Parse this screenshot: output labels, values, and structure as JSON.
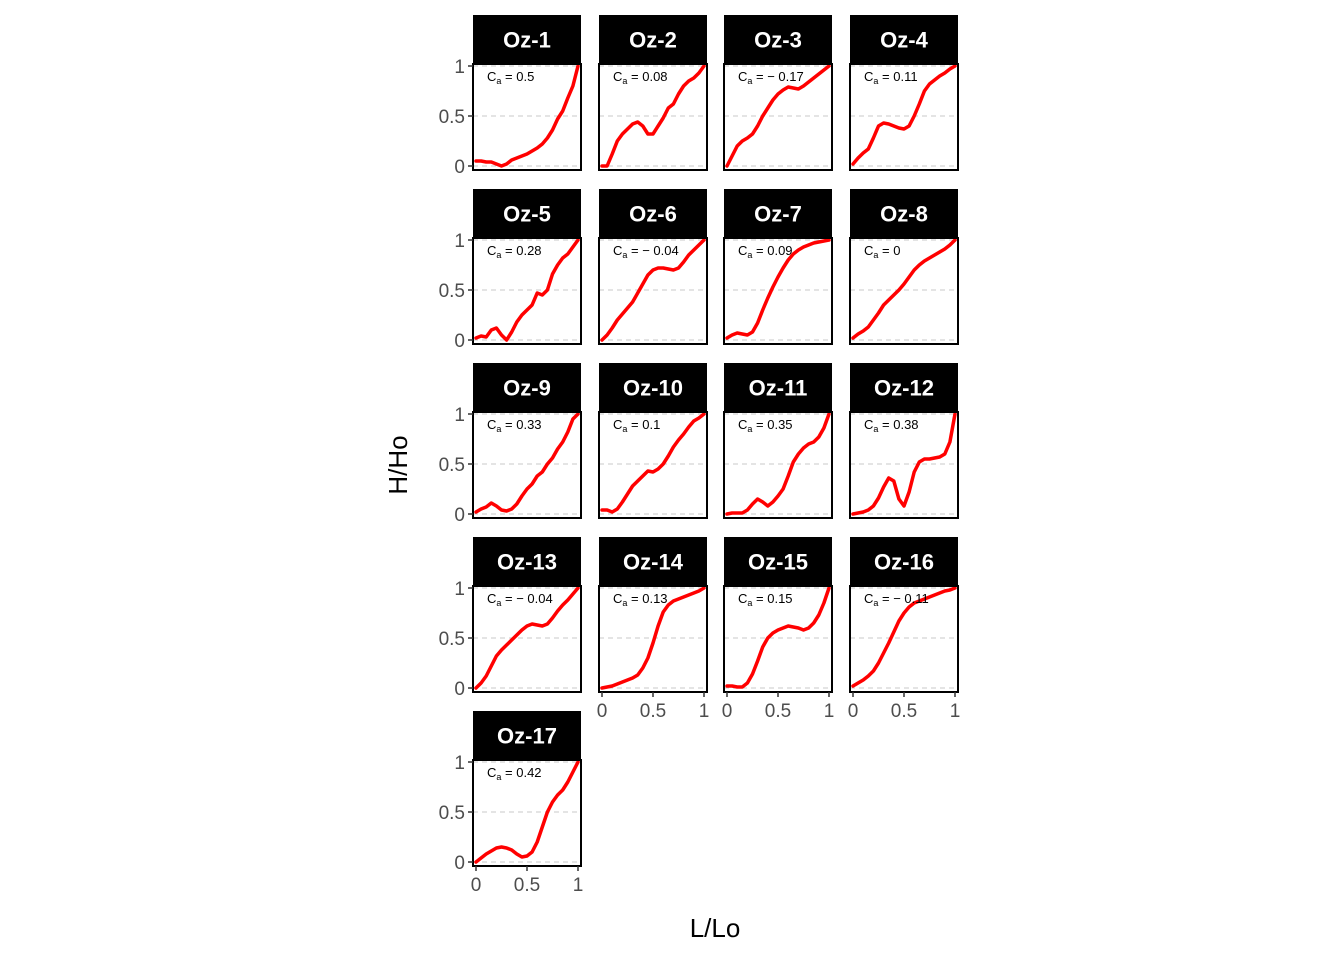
{
  "chart_data": {
    "type": "line",
    "xlabel": "L/Lo",
    "ylabel": "H/Ho",
    "xlim": [
      0,
      1
    ],
    "ylim": [
      0,
      1
    ],
    "x_ticks": [
      "0",
      "0.5",
      "1"
    ],
    "y_ticks": [
      "0",
      "0.5",
      "1"
    ],
    "grid": "dashed horizontal lines at 0, 0.5, 1",
    "line_color": "#ff0000",
    "strip_color": "#000000",
    "annotation_prefix": "C",
    "annotation_subscript": "a",
    "annotation_equals": " = ",
    "panels": [
      {
        "name": "Oz-1",
        "ca": "0.5",
        "x": [
          0,
          0.05,
          0.1,
          0.15,
          0.2,
          0.25,
          0.3,
          0.35,
          0.4,
          0.45,
          0.5,
          0.55,
          0.6,
          0.65,
          0.7,
          0.75,
          0.8,
          0.85,
          0.9,
          0.95,
          1
        ],
        "y": [
          0.05,
          0.05,
          0.04,
          0.04,
          0.02,
          0.0,
          0.02,
          0.06,
          0.08,
          0.1,
          0.12,
          0.15,
          0.18,
          0.22,
          0.28,
          0.36,
          0.47,
          0.55,
          0.68,
          0.8,
          1.0
        ]
      },
      {
        "name": "Oz-2",
        "ca": "0.08",
        "x": [
          0,
          0.05,
          0.1,
          0.15,
          0.2,
          0.25,
          0.3,
          0.35,
          0.4,
          0.45,
          0.5,
          0.55,
          0.6,
          0.65,
          0.7,
          0.75,
          0.8,
          0.85,
          0.9,
          0.95,
          1
        ],
        "y": [
          0.0,
          0.0,
          0.12,
          0.25,
          0.32,
          0.37,
          0.42,
          0.44,
          0.4,
          0.32,
          0.32,
          0.4,
          0.48,
          0.58,
          0.62,
          0.72,
          0.8,
          0.85,
          0.88,
          0.93,
          1.0
        ]
      },
      {
        "name": "Oz-3",
        "ca": "− 0.17",
        "x": [
          0,
          0.05,
          0.1,
          0.15,
          0.2,
          0.25,
          0.3,
          0.35,
          0.4,
          0.45,
          0.5,
          0.55,
          0.6,
          0.65,
          0.7,
          0.75,
          0.8,
          0.85,
          0.9,
          0.95,
          1
        ],
        "y": [
          0.0,
          0.1,
          0.2,
          0.25,
          0.28,
          0.32,
          0.4,
          0.5,
          0.58,
          0.66,
          0.72,
          0.76,
          0.79,
          0.78,
          0.77,
          0.8,
          0.84,
          0.88,
          0.92,
          0.96,
          1.0
        ]
      },
      {
        "name": "Oz-4",
        "ca": "0.11",
        "x": [
          0,
          0.05,
          0.1,
          0.15,
          0.2,
          0.25,
          0.3,
          0.35,
          0.4,
          0.45,
          0.5,
          0.55,
          0.6,
          0.65,
          0.7,
          0.75,
          0.8,
          0.85,
          0.9,
          0.95,
          1
        ],
        "y": [
          0.02,
          0.08,
          0.13,
          0.17,
          0.28,
          0.4,
          0.43,
          0.42,
          0.4,
          0.38,
          0.37,
          0.4,
          0.5,
          0.62,
          0.75,
          0.82,
          0.86,
          0.9,
          0.93,
          0.97,
          1.0
        ]
      },
      {
        "name": "Oz-5",
        "ca": "0.28",
        "x": [
          0,
          0.05,
          0.1,
          0.15,
          0.2,
          0.25,
          0.3,
          0.35,
          0.4,
          0.45,
          0.5,
          0.55,
          0.6,
          0.65,
          0.7,
          0.75,
          0.8,
          0.85,
          0.9,
          0.95,
          1
        ],
        "y": [
          0.02,
          0.04,
          0.03,
          0.1,
          0.12,
          0.05,
          0.0,
          0.08,
          0.18,
          0.25,
          0.3,
          0.35,
          0.47,
          0.45,
          0.5,
          0.66,
          0.75,
          0.82,
          0.86,
          0.93,
          1.0
        ]
      },
      {
        "name": "Oz-6",
        "ca": "− 0.04",
        "x": [
          0,
          0.05,
          0.1,
          0.15,
          0.2,
          0.25,
          0.3,
          0.35,
          0.4,
          0.45,
          0.5,
          0.55,
          0.6,
          0.65,
          0.7,
          0.75,
          0.8,
          0.85,
          0.9,
          0.95,
          1
        ],
        "y": [
          0.0,
          0.05,
          0.12,
          0.2,
          0.26,
          0.32,
          0.38,
          0.47,
          0.56,
          0.65,
          0.7,
          0.72,
          0.72,
          0.71,
          0.7,
          0.72,
          0.78,
          0.85,
          0.9,
          0.95,
          1.0
        ]
      },
      {
        "name": "Oz-7",
        "ca": "0.09",
        "x": [
          0,
          0.05,
          0.1,
          0.15,
          0.2,
          0.25,
          0.3,
          0.35,
          0.4,
          0.45,
          0.5,
          0.55,
          0.6,
          0.65,
          0.7,
          0.75,
          0.8,
          0.85,
          0.9,
          0.95,
          1
        ],
        "y": [
          0.02,
          0.05,
          0.07,
          0.06,
          0.05,
          0.08,
          0.17,
          0.3,
          0.42,
          0.53,
          0.63,
          0.72,
          0.8,
          0.86,
          0.9,
          0.93,
          0.95,
          0.97,
          0.98,
          0.99,
          1.0
        ]
      },
      {
        "name": "Oz-8",
        "ca": "0",
        "x": [
          0,
          0.05,
          0.1,
          0.15,
          0.2,
          0.25,
          0.3,
          0.35,
          0.4,
          0.45,
          0.5,
          0.55,
          0.6,
          0.65,
          0.7,
          0.75,
          0.8,
          0.85,
          0.9,
          0.95,
          1
        ],
        "y": [
          0.02,
          0.06,
          0.09,
          0.13,
          0.2,
          0.27,
          0.35,
          0.4,
          0.45,
          0.5,
          0.56,
          0.63,
          0.7,
          0.75,
          0.79,
          0.82,
          0.85,
          0.88,
          0.91,
          0.95,
          1.0
        ]
      },
      {
        "name": "Oz-9",
        "ca": "0.33",
        "x": [
          0,
          0.05,
          0.1,
          0.15,
          0.2,
          0.25,
          0.3,
          0.35,
          0.4,
          0.45,
          0.5,
          0.55,
          0.6,
          0.65,
          0.7,
          0.75,
          0.8,
          0.85,
          0.9,
          0.95,
          1
        ],
        "y": [
          0.02,
          0.05,
          0.07,
          0.11,
          0.08,
          0.04,
          0.03,
          0.05,
          0.1,
          0.18,
          0.25,
          0.3,
          0.38,
          0.42,
          0.5,
          0.56,
          0.65,
          0.72,
          0.82,
          0.95,
          1.0
        ]
      },
      {
        "name": "Oz-10",
        "ca": "0.1",
        "x": [
          0,
          0.05,
          0.1,
          0.15,
          0.2,
          0.25,
          0.3,
          0.35,
          0.4,
          0.45,
          0.5,
          0.55,
          0.6,
          0.65,
          0.7,
          0.75,
          0.8,
          0.85,
          0.9,
          0.95,
          1
        ],
        "y": [
          0.04,
          0.04,
          0.02,
          0.05,
          0.12,
          0.2,
          0.28,
          0.33,
          0.38,
          0.43,
          0.42,
          0.45,
          0.5,
          0.58,
          0.67,
          0.74,
          0.8,
          0.87,
          0.93,
          0.96,
          1.0
        ]
      },
      {
        "name": "Oz-11",
        "ca": "0.35",
        "x": [
          0,
          0.05,
          0.1,
          0.15,
          0.2,
          0.25,
          0.3,
          0.35,
          0.4,
          0.45,
          0.5,
          0.55,
          0.6,
          0.65,
          0.7,
          0.75,
          0.8,
          0.85,
          0.9,
          0.95,
          1
        ],
        "y": [
          0.0,
          0.01,
          0.01,
          0.01,
          0.04,
          0.1,
          0.15,
          0.12,
          0.08,
          0.12,
          0.18,
          0.25,
          0.38,
          0.52,
          0.6,
          0.66,
          0.7,
          0.72,
          0.77,
          0.86,
          1.0
        ]
      },
      {
        "name": "Oz-12",
        "ca": "0.38",
        "x": [
          0,
          0.05,
          0.1,
          0.15,
          0.2,
          0.25,
          0.3,
          0.35,
          0.4,
          0.45,
          0.5,
          0.55,
          0.6,
          0.65,
          0.7,
          0.75,
          0.8,
          0.85,
          0.9,
          0.95,
          1
        ],
        "y": [
          0.0,
          0.01,
          0.02,
          0.04,
          0.08,
          0.16,
          0.27,
          0.36,
          0.33,
          0.15,
          0.08,
          0.22,
          0.42,
          0.52,
          0.55,
          0.55,
          0.56,
          0.57,
          0.6,
          0.72,
          1.0
        ]
      },
      {
        "name": "Oz-13",
        "ca": "− 0.04",
        "x": [
          0,
          0.05,
          0.1,
          0.15,
          0.2,
          0.25,
          0.3,
          0.35,
          0.4,
          0.45,
          0.5,
          0.55,
          0.6,
          0.65,
          0.7,
          0.75,
          0.8,
          0.85,
          0.9,
          0.95,
          1
        ],
        "y": [
          0.0,
          0.05,
          0.12,
          0.22,
          0.32,
          0.38,
          0.43,
          0.48,
          0.53,
          0.58,
          0.62,
          0.64,
          0.63,
          0.62,
          0.64,
          0.7,
          0.77,
          0.83,
          0.88,
          0.94,
          1.0
        ]
      },
      {
        "name": "Oz-14",
        "ca": "0.13",
        "x": [
          0,
          0.05,
          0.1,
          0.15,
          0.2,
          0.25,
          0.3,
          0.35,
          0.4,
          0.45,
          0.5,
          0.55,
          0.6,
          0.65,
          0.7,
          0.75,
          0.8,
          0.85,
          0.9,
          0.95,
          1
        ],
        "y": [
          0.0,
          0.01,
          0.02,
          0.04,
          0.06,
          0.08,
          0.1,
          0.13,
          0.2,
          0.3,
          0.45,
          0.62,
          0.76,
          0.83,
          0.87,
          0.89,
          0.91,
          0.93,
          0.95,
          0.97,
          1.0
        ]
      },
      {
        "name": "Oz-15",
        "ca": "0.15",
        "x": [
          0,
          0.05,
          0.1,
          0.15,
          0.2,
          0.25,
          0.3,
          0.35,
          0.4,
          0.45,
          0.5,
          0.55,
          0.6,
          0.65,
          0.7,
          0.75,
          0.8,
          0.85,
          0.9,
          0.95,
          1
        ],
        "y": [
          0.02,
          0.02,
          0.01,
          0.01,
          0.05,
          0.14,
          0.27,
          0.41,
          0.5,
          0.55,
          0.58,
          0.6,
          0.62,
          0.61,
          0.6,
          0.58,
          0.6,
          0.65,
          0.73,
          0.85,
          1.0
        ]
      },
      {
        "name": "Oz-16",
        "ca": "− 0.11",
        "x": [
          0,
          0.05,
          0.1,
          0.15,
          0.2,
          0.25,
          0.3,
          0.35,
          0.4,
          0.45,
          0.5,
          0.55,
          0.6,
          0.65,
          0.7,
          0.75,
          0.8,
          0.85,
          0.9,
          0.95,
          1
        ],
        "y": [
          0.02,
          0.05,
          0.08,
          0.12,
          0.17,
          0.25,
          0.35,
          0.45,
          0.56,
          0.67,
          0.75,
          0.81,
          0.85,
          0.87,
          0.89,
          0.91,
          0.93,
          0.95,
          0.97,
          0.98,
          1.0
        ]
      },
      {
        "name": "Oz-17",
        "ca": "0.42",
        "x": [
          0,
          0.05,
          0.1,
          0.15,
          0.2,
          0.25,
          0.3,
          0.35,
          0.4,
          0.45,
          0.5,
          0.55,
          0.6,
          0.65,
          0.7,
          0.75,
          0.8,
          0.85,
          0.9,
          0.95,
          1
        ],
        "y": [
          0.0,
          0.04,
          0.08,
          0.11,
          0.14,
          0.15,
          0.14,
          0.12,
          0.08,
          0.05,
          0.06,
          0.1,
          0.2,
          0.35,
          0.5,
          0.6,
          0.67,
          0.72,
          0.8,
          0.9,
          1.0
        ]
      }
    ]
  }
}
